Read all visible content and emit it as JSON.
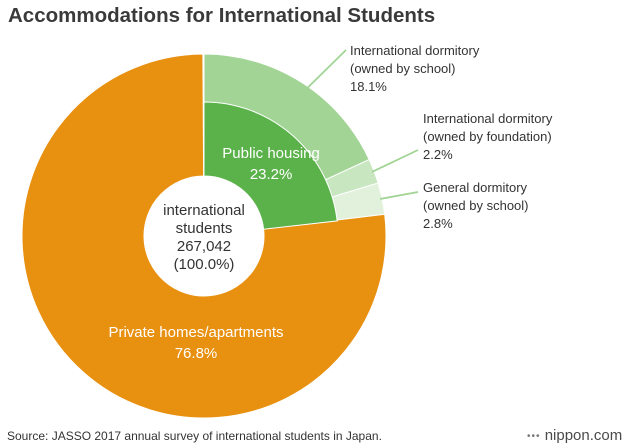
{
  "chart_data": {
    "type": "pie",
    "title": "Accommodations for International Students",
    "center_label": [
      "international",
      "students",
      "267,042",
      "(100.0%)"
    ],
    "slices": [
      {
        "label": [
          "International dormitory",
          "(owned by school)"
        ],
        "value": 18.1,
        "value_text": "18.1%",
        "color": "#a1d495",
        "layer": "outer"
      },
      {
        "label": [
          "International dormitory",
          "(owned by foundation)"
        ],
        "value": 2.2,
        "value_text": "2.2%",
        "color": "#c8e6c0",
        "layer": "outer"
      },
      {
        "label": [
          "General dormitory",
          "(owned by school)"
        ],
        "value": 2.8,
        "value_text": "2.8%",
        "color": "#e1f1dc",
        "layer": "outer"
      },
      {
        "label": [
          "Private homes/apartments"
        ],
        "value": 76.8,
        "value_text": "76.8%",
        "color": "#e8900f",
        "layer": "outer"
      },
      {
        "label": [
          "Public housing"
        ],
        "value": 23.2,
        "value_text": "23.2%",
        "color": "#5bb24b",
        "layer": "inner"
      }
    ]
  },
  "footer": {
    "source": "Source: JASSO 2017 annual survey of international students in Japan.",
    "logo": "nippon.com",
    "logo_mark": "•••"
  },
  "colors": {
    "background": "#ffffff",
    "title": "#3a3a3a",
    "leader_line": "#a1d495",
    "inside_label": "#ffffff",
    "outside_label": "#333333"
  }
}
